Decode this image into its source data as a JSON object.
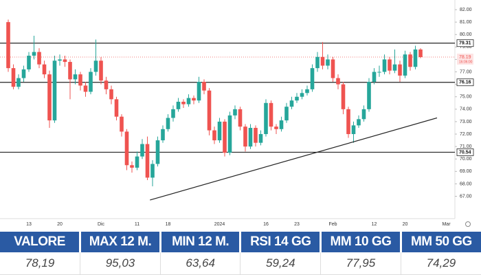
{
  "chart_data": {
    "type": "candlestick",
    "categories": [
      null,
      null,
      null,
      null,
      "13",
      null,
      null,
      null,
      null,
      null,
      "20",
      null,
      null,
      null,
      null,
      null,
      null,
      null,
      "Dic",
      null,
      null,
      null,
      null,
      null,
      null,
      "11",
      null,
      null,
      null,
      null,
      null,
      "18",
      null,
      null,
      null,
      null,
      null,
      null,
      null,
      null,
      null,
      "2024",
      null,
      null,
      null,
      null,
      null,
      null,
      null,
      null,
      "16",
      null,
      null,
      null,
      null,
      null,
      "23",
      null,
      null,
      null,
      null,
      null,
      null,
      "Feb",
      null,
      null,
      null,
      null,
      null,
      null,
      null,
      "12",
      null,
      null,
      null,
      null,
      null,
      "20",
      null,
      null,
      null,
      null,
      null,
      null,
      null,
      "Mar"
    ],
    "open": [
      81,
      77.3,
      75.8,
      76.5,
      77.2,
      78.3,
      78.6,
      77.6,
      76.8,
      73.1,
      77.9,
      78.0,
      77.8,
      76.4,
      76.8,
      75.9,
      75.4,
      77.0,
      77.9,
      76.3,
      75.6,
      74.8,
      73.4,
      72.2,
      69.5,
      69.3,
      70.2,
      71.2,
      68.5,
      69.6,
      71.5,
      72.4,
      73.3,
      74.0,
      74.6,
      74.4,
      74.9,
      74.7,
      76.2,
      75.5,
      72.3,
      71.5,
      73.0,
      70.5,
      73.5,
      74.0,
      72.6,
      71.0,
      72.5,
      71.3,
      72.0,
      74.5,
      72.6,
      72.4,
      73.1,
      74.2,
      74.7,
      75.0,
      75.3,
      75.6,
      77.3,
      78.2,
      77.5,
      78.0,
      76.5,
      76.0,
      74.0,
      72.0,
      72.7,
      73.2,
      74.0,
      76.2,
      77.0,
      77.0,
      78.0,
      77.1,
      77.6,
      76.7,
      78.4,
      77.4,
      78.8,
      null,
      null,
      null,
      null,
      null
    ],
    "high": [
      81.2,
      77.6,
      76.8,
      77.5,
      78.6,
      79.9,
      78.9,
      77.9,
      77.1,
      78.3,
      78.4,
      78.3,
      78.0,
      77.2,
      77.0,
      76.2,
      77.3,
      79.6,
      78.2,
      76.6,
      75.9,
      75.0,
      73.6,
      72.4,
      69.8,
      70.6,
      71.6,
      71.8,
      69.9,
      71.8,
      72.7,
      73.6,
      74.3,
      74.9,
      74.8,
      75.2,
      75.1,
      76.6,
      76.4,
      75.7,
      72.6,
      73.3,
      73.2,
      73.8,
      74.3,
      74.2,
      72.8,
      72.8,
      72.7,
      72.3,
      74.8,
      74.7,
      72.8,
      73.4,
      74.5,
      75.0,
      75.3,
      75.6,
      75.9,
      77.6,
      78.6,
      79.4,
      78.4,
      78.2,
      76.8,
      76.2,
      74.2,
      73.0,
      73.5,
      74.3,
      76.5,
      77.3,
      77.5,
      78.4,
      78.2,
      78.8,
      77.9,
      78.7,
      78.6,
      79.1,
      78.9,
      null,
      null,
      null,
      null,
      null
    ],
    "low": [
      77.0,
      75.6,
      75.6,
      76.2,
      77.0,
      78.0,
      77.3,
      76.5,
      72.5,
      72.9,
      77.5,
      77.4,
      74.8,
      76.0,
      75.5,
      75.0,
      75.2,
      76.7,
      76.0,
      75.2,
      74.4,
      73.1,
      71.8,
      69.1,
      68.9,
      69.1,
      70.0,
      68.3,
      67.8,
      69.4,
      71.3,
      72.2,
      73.0,
      73.8,
      74.1,
      74.2,
      74.4,
      74.5,
      75.2,
      71.9,
      71.2,
      71.3,
      70.2,
      70.3,
      73.2,
      72.3,
      70.6,
      70.8,
      71.0,
      71.1,
      71.8,
      72.3,
      72.0,
      72.2,
      72.9,
      74.0,
      74.5,
      74.8,
      75.1,
      75.4,
      77.0,
      77.2,
      77.2,
      76.2,
      75.6,
      73.6,
      71.7,
      71.3,
      72.5,
      73.0,
      73.8,
      76.0,
      76.6,
      76.8,
      76.8,
      76.9,
      76.2,
      76.5,
      77.1,
      77.2,
      78.1,
      null,
      null,
      null,
      null,
      null
    ],
    "close": [
      77.3,
      75.8,
      76.5,
      77.2,
      78.3,
      78.6,
      77.6,
      76.8,
      73.1,
      77.9,
      78.0,
      77.8,
      76.4,
      76.8,
      75.9,
      75.4,
      77.0,
      77.9,
      76.3,
      75.6,
      74.8,
      73.4,
      72.2,
      69.5,
      69.3,
      70.2,
      71.2,
      68.5,
      69.6,
      71.5,
      72.4,
      73.3,
      74.0,
      74.6,
      74.4,
      74.9,
      74.7,
      76.2,
      75.5,
      72.3,
      71.5,
      73.0,
      70.5,
      73.5,
      74.0,
      72.6,
      71.0,
      72.5,
      71.3,
      72.0,
      74.5,
      72.6,
      72.4,
      73.1,
      74.2,
      74.7,
      75.0,
      75.3,
      75.6,
      77.3,
      78.2,
      77.5,
      78.0,
      76.5,
      76.0,
      74.0,
      72.0,
      72.7,
      73.2,
      74.0,
      76.2,
      77.0,
      77.0,
      78.0,
      77.1,
      77.6,
      76.7,
      78.4,
      77.4,
      78.8,
      78.19,
      null,
      null,
      null,
      null,
      null
    ],
    "up_color": "#26a69a",
    "down_color": "#ef5350",
    "ylim": [
      66.2,
      82.5
    ],
    "yticks": [
      {
        "value": 67,
        "label": "67.00"
      },
      {
        "value": 68,
        "label": "68.00"
      },
      {
        "value": 69,
        "label": "69.00"
      },
      {
        "value": 70,
        "label": "70.00"
      },
      {
        "value": 71,
        "label": "71.00"
      },
      {
        "value": 72,
        "label": "72.00"
      },
      {
        "value": 73,
        "label": "73.00"
      },
      {
        "value": 74,
        "label": "74.00"
      },
      {
        "value": 75,
        "label": "75.00"
      },
      {
        "value": 76,
        "label": "76.00"
      },
      {
        "value": 77,
        "label": "77.00"
      },
      {
        "value": 78,
        "label": "78.00"
      },
      {
        "value": 79,
        "label": "79.00"
      },
      {
        "value": 80,
        "label": "80.00"
      },
      {
        "value": 81,
        "label": "81.00"
      },
      {
        "value": 82,
        "label": "82.00"
      }
    ],
    "levels": [
      79.31,
      76.16,
      70.54
    ],
    "last_price": 78.19,
    "last_time": "16:06:00",
    "trendline": {
      "from": [
        27.5,
        66.7
      ],
      "to": [
        83.2,
        73.3
      ]
    }
  },
  "table": {
    "headers": [
      "VALORE",
      "MAX 12 M.",
      "MIN 12 M.",
      "RSI 14 GG",
      "MM 10 GG",
      "MM 50 GG"
    ],
    "rows": [
      [
        "78,19",
        "95,03",
        "63,64",
        "59,24",
        "77,95",
        "74,29"
      ]
    ]
  }
}
